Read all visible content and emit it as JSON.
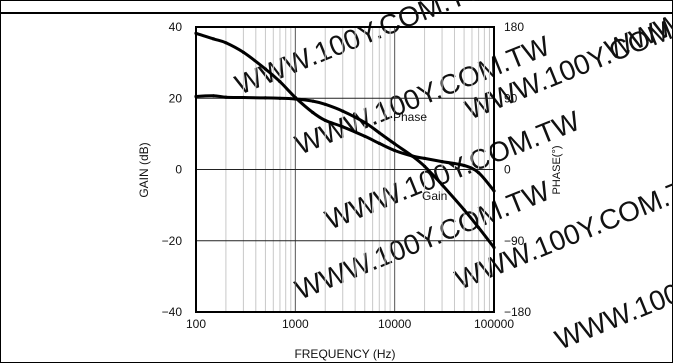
{
  "chart_data": {
    "type": "line",
    "title": "",
    "xlabel": "FREQUENCY (Hz)",
    "ylabel": "GAIN (dB)",
    "y2label": "PHASE(°)",
    "xscale": "log",
    "xlim": [
      100,
      100000
    ],
    "ylim": [
      -40,
      40
    ],
    "y2lim": [
      -180,
      180
    ],
    "x_ticks": [
      "100",
      "1000",
      "10000",
      "100000"
    ],
    "y_ticks": [
      "40",
      "20",
      "0",
      "−20",
      "−40"
    ],
    "y2_ticks": [
      "180",
      "90",
      "0",
      "−90",
      "−180"
    ],
    "grid": true,
    "series": [
      {
        "name": "Gain",
        "axis": "left",
        "x": [
          100,
          150,
          200,
          300,
          500,
          700,
          1000,
          1500,
          2000,
          3000,
          5000,
          7000,
          10000,
          15000,
          20000,
          30000,
          50000,
          70000,
          100000
        ],
        "values": [
          20.5,
          20.7,
          20.3,
          20.2,
          20.1,
          20.0,
          19.8,
          19.2,
          18.3,
          16.4,
          13.2,
          10.3,
          7.2,
          3.8,
          0.9,
          -4.3,
          -11.3,
          -16.3,
          -21.9
        ]
      },
      {
        "name": "Phase",
        "axis": "right",
        "x": [
          100,
          150,
          200,
          300,
          500,
          700,
          1000,
          1500,
          2000,
          3000,
          5000,
          7000,
          10000,
          15000,
          20000,
          30000,
          50000,
          70000,
          100000
        ],
        "values": [
          172,
          165,
          160,
          148,
          127,
          111,
          91,
          72,
          62,
          54,
          42,
          33,
          24,
          17,
          14,
          10,
          5,
          -4,
          -27
        ]
      }
    ],
    "annotations": [
      "Phase",
      "Gain"
    ]
  },
  "watermark": "WWW.100Y.COM.TW"
}
